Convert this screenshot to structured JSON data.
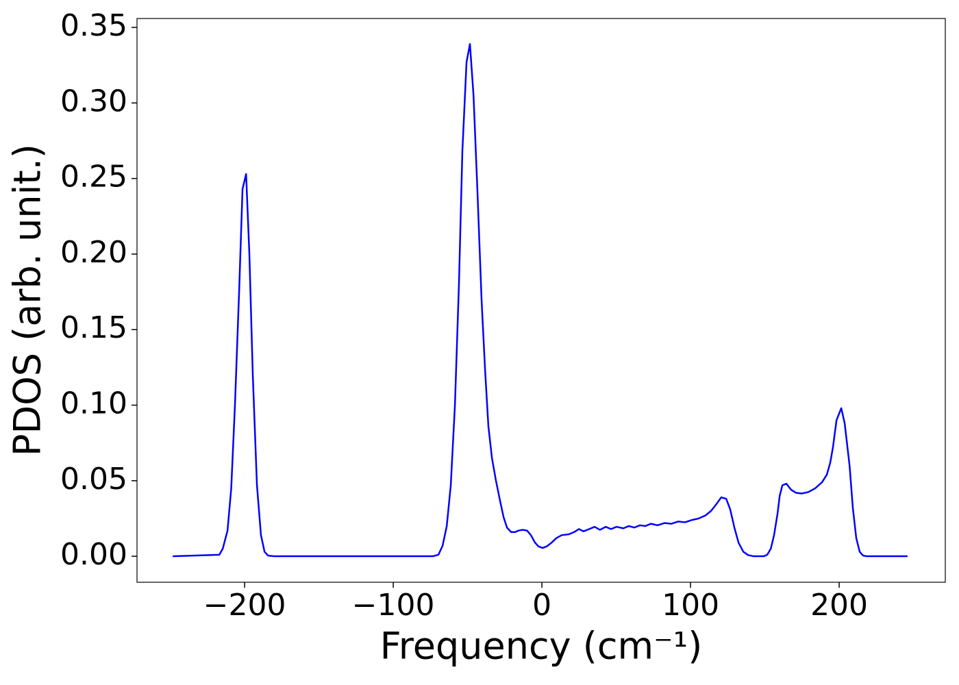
{
  "chart_data": {
    "type": "line",
    "xlabel": "Frequency (cm⁻¹)",
    "ylabel": "PDOS (arb. unit.)",
    "color": "#0000ff",
    "x": [
      -248.4,
      -217,
      -214.7,
      -211.5,
      -209,
      -206.5,
      -203.7,
      -201.4,
      -199,
      -196.8,
      -194.5,
      -191.7,
      -189,
      -186.6,
      -184.3,
      -180,
      -73.3,
      -69.6,
      -66.8,
      -64,
      -61.3,
      -58.5,
      -55.8,
      -53.5,
      -50.7,
      -48.4,
      -46,
      -43.3,
      -40.6,
      -38.2,
      -36,
      -33.6,
      -30.9,
      -28,
      -25.8,
      -23.5,
      -20.7,
      -18,
      -15.7,
      -12.9,
      -10,
      -7.4,
      -4.6,
      -2.3,
      0.5,
      3.2,
      6.5,
      9.7,
      13.4,
      18,
      21.7,
      24.9,
      28,
      31.8,
      35.5,
      39,
      43,
      46.5,
      50.2,
      54.8,
      58.5,
      62.2,
      66,
      69.6,
      73.3,
      77.9,
      82.5,
      87,
      91.7,
      96.3,
      101,
      105.5,
      110,
      113.8,
      117,
      120.7,
      124,
      126.7,
      129.5,
      132.3,
      135.5,
      138.7,
      142.4,
      149.3,
      151.6,
      154,
      156.2,
      158.5,
      160,
      161.8,
      164.5,
      167.7,
      171,
      174.7,
      179.3,
      183.9,
      188.5,
      191.7,
      194,
      195.8,
      198.2,
      201.4,
      203.7,
      207,
      209.2,
      211.5,
      213.8,
      216,
      218.4,
      246
    ],
    "values": [
      0,
      0.001,
      0.005,
      0.017,
      0.045,
      0.1,
      0.175,
      0.243,
      0.253,
      0.2,
      0.12,
      0.047,
      0.014,
      0.003,
      0.0005,
      0,
      0,
      0.001,
      0.007,
      0.02,
      0.047,
      0.1,
      0.18,
      0.268,
      0.327,
      0.339,
      0.305,
      0.24,
      0.17,
      0.123,
      0.086,
      0.065,
      0.05,
      0.036,
      0.026,
      0.019,
      0.016,
      0.016,
      0.017,
      0.0175,
      0.017,
      0.014,
      0.009,
      0.0065,
      0.0055,
      0.0065,
      0.009,
      0.012,
      0.014,
      0.0145,
      0.016,
      0.018,
      0.0165,
      0.018,
      0.0195,
      0.0175,
      0.0195,
      0.018,
      0.0195,
      0.0185,
      0.02,
      0.019,
      0.0205,
      0.02,
      0.0215,
      0.0205,
      0.022,
      0.0215,
      0.023,
      0.0225,
      0.024,
      0.025,
      0.027,
      0.03,
      0.034,
      0.039,
      0.038,
      0.031,
      0.019,
      0.009,
      0.003,
      0.0008,
      0,
      0,
      0.001,
      0.005,
      0.014,
      0.028,
      0.04,
      0.047,
      0.048,
      0.044,
      0.042,
      0.0415,
      0.0425,
      0.045,
      0.049,
      0.054,
      0.062,
      0.072,
      0.09,
      0.098,
      0.088,
      0.06,
      0.032,
      0.012,
      0.003,
      0.0005,
      0,
      0
    ],
    "xlim": [
      -272.4,
      271.4
    ],
    "ylim": [
      -0.0172,
      0.3559
    ],
    "xticks": [
      {
        "value": -200,
        "label": "−200"
      },
      {
        "value": -100,
        "label": "−100"
      },
      0,
      100,
      200
    ],
    "yticks": [
      {
        "value": 0,
        "label": "0.00"
      },
      {
        "value": 0.05,
        "label": "0.05"
      },
      {
        "value": 0.1,
        "label": "0.10"
      },
      {
        "value": 0.15,
        "label": "0.15"
      },
      {
        "value": 0.2,
        "label": "0.20"
      },
      {
        "value": 0.25,
        "label": "0.25"
      },
      {
        "value": 0.3,
        "label": "0.30"
      },
      {
        "value": 0.35,
        "label": "0.35"
      }
    ],
    "grid": false
  }
}
